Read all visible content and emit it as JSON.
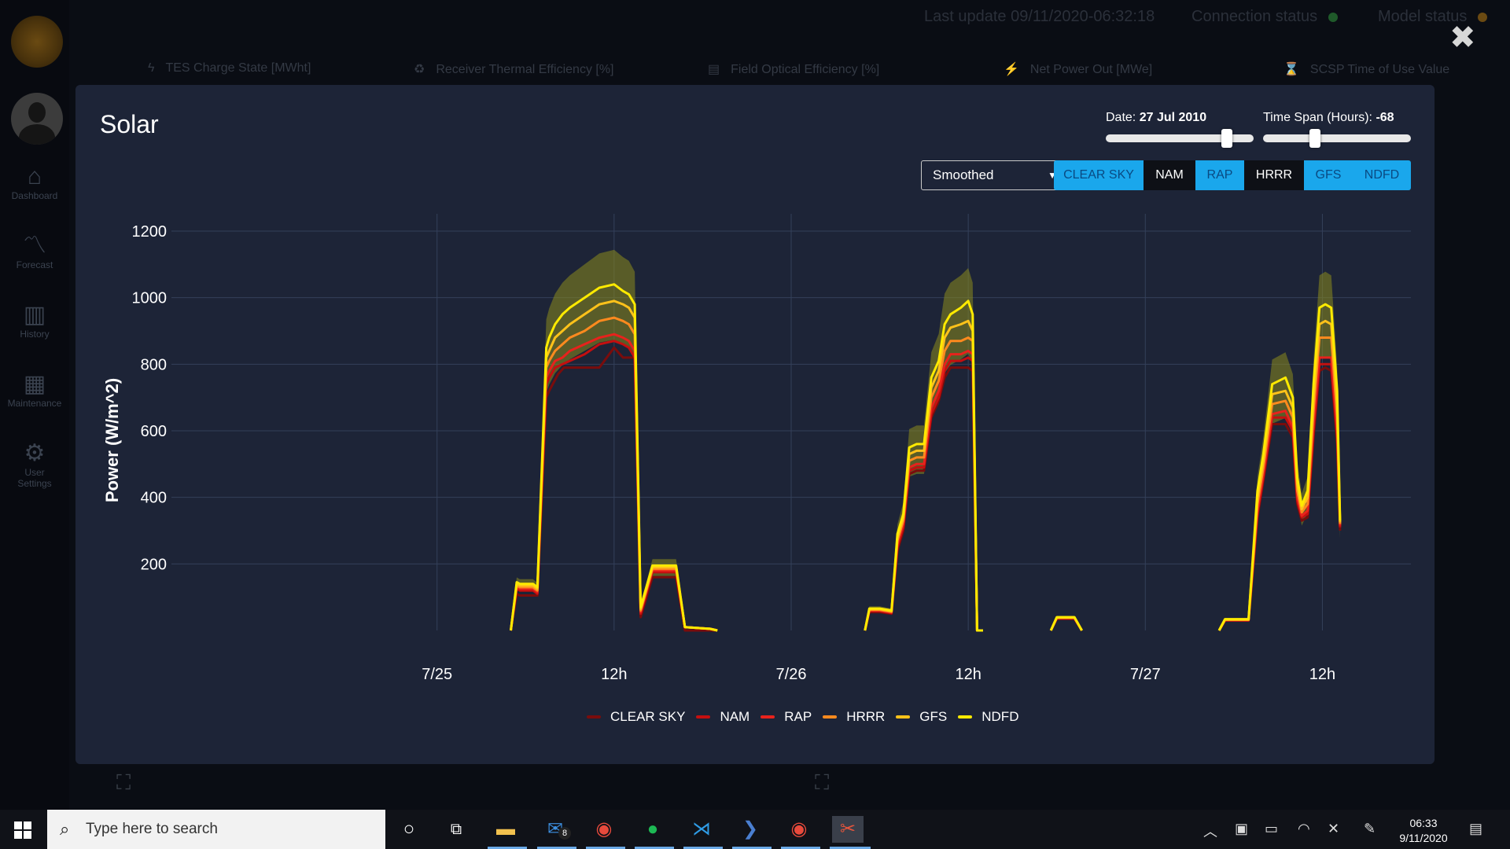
{
  "background_app": {
    "last_update": "Last update 09/11/2020-06:32:18",
    "connection_status": "Connection status",
    "model_status": "Model status",
    "status_colors": {
      "connection": "#1f5a2a",
      "model": "#6b4a12"
    },
    "sidebar": [
      {
        "label": "Dashboard",
        "icon": "home-icon"
      },
      {
        "label": "Forecast",
        "icon": "line-chart-icon"
      },
      {
        "label": "History",
        "icon": "bar-chart-icon"
      },
      {
        "label": "Maintenance",
        "icon": "grid-icon"
      },
      {
        "label": "User Settings",
        "icon": "gears-icon"
      }
    ],
    "tiles": [
      {
        "label": "TES Charge State [MWht]",
        "icon": "bolt-icon"
      },
      {
        "label": "Receiver Thermal Efficiency [%]",
        "icon": "recycle-icon"
      },
      {
        "label": "Field Optical Efficiency [%]",
        "icon": "screen-icon"
      },
      {
        "label": "Net Power Out [MWe]",
        "icon": "plug-icon"
      },
      {
        "label": "SCSP Time of Use Value",
        "icon": "hourglass-icon"
      }
    ]
  },
  "modal": {
    "title": "Solar",
    "date_slider": {
      "label": "Date:",
      "value": "27 Jul 2010",
      "position": 0.82
    },
    "span_slider": {
      "label": "Time Span (Hours):",
      "value": "-68",
      "position": 0.35
    },
    "dropdown": {
      "selected": "Smoothed"
    },
    "model_buttons": [
      {
        "label": "CLEAR SKY",
        "active": true
      },
      {
        "label": "NAM",
        "active": false
      },
      {
        "label": "RAP",
        "active": true
      },
      {
        "label": "HRRR",
        "active": false
      },
      {
        "label": "GFS",
        "active": true
      },
      {
        "label": "NDFD",
        "active": true
      }
    ],
    "accent_color": "#1aa7ec"
  },
  "chart_data": {
    "type": "line",
    "title": "",
    "xlabel": "",
    "ylabel": "Power (W/m^2)",
    "ylim": [
      0,
      1200
    ],
    "y_ticks": [
      200,
      400,
      600,
      800,
      1000,
      1200
    ],
    "x_range_hours": [
      -18,
      66
    ],
    "x_ticks": [
      {
        "hour": 0,
        "label": "7/25"
      },
      {
        "hour": 12,
        "label": "12h"
      },
      {
        "hour": 24,
        "label": "7/26"
      },
      {
        "hour": 36,
        "label": "12h"
      },
      {
        "hour": 48,
        "label": "7/27"
      },
      {
        "hour": 60,
        "label": "12h"
      }
    ],
    "grid": true,
    "legend_position": "bottom",
    "series": [
      {
        "name": "CLEAR SKY",
        "color": "#7a0c0c",
        "x": [
          5,
          5.4,
          5.6,
          6.5,
          6.8,
          7.4,
          7.6,
          8.2,
          8.6,
          10,
          11,
          12,
          12.6,
          13,
          13.4,
          13.8,
          14.6,
          15.4,
          16,
          16.2,
          16.8,
          17.5,
          18.5,
          19
        ],
        "y": [
          0,
          110,
          105,
          105,
          105,
          700,
          720,
          770,
          790,
          790,
          790,
          850,
          820,
          820,
          820,
          40,
          160,
          160,
          160,
          160,
          0,
          0,
          0,
          0
        ]
      },
      {
        "name": "NAM",
        "color": "#c40f0f",
        "x": [
          5,
          5.4,
          5.6,
          6.5,
          6.8,
          7.4,
          7.6,
          8,
          8.5,
          9,
          10,
          11,
          12,
          12.6,
          13,
          13.4,
          13.8,
          14.6,
          15.4,
          16,
          16.2,
          16.8,
          17.5,
          18.5,
          19
        ],
        "y": [
          0,
          125,
          120,
          120,
          110,
          740,
          760,
          790,
          800,
          810,
          830,
          860,
          870,
          860,
          850,
          820,
          50,
          175,
          175,
          175,
          175,
          10,
          8,
          5,
          0
        ]
      },
      {
        "name": "RAP",
        "color": "#e8221c",
        "x": [
          5,
          5.4,
          5.6,
          6.5,
          6.8,
          7.4,
          7.6,
          8,
          8.5,
          9,
          10,
          11,
          12,
          12.6,
          13,
          13.4,
          13.8,
          14.6,
          15.4,
          16,
          16.2,
          16.8,
          17.5,
          18.5,
          19
        ],
        "y": [
          0,
          130,
          125,
          125,
          115,
          760,
          780,
          810,
          820,
          840,
          860,
          880,
          890,
          880,
          870,
          840,
          55,
          180,
          180,
          180,
          180,
          10,
          8,
          5,
          0
        ]
      },
      {
        "name": "HRRR",
        "color": "#ff8a1e",
        "x": [
          5,
          5.4,
          5.6,
          6.5,
          6.8,
          7.4,
          7.6,
          8,
          8.5,
          9,
          10,
          11,
          12,
          12.6,
          13,
          13.4,
          13.8,
          14.6,
          15.4,
          16,
          16.2,
          16.8,
          17.5,
          18.5,
          19
        ],
        "y": [
          0,
          135,
          130,
          130,
          120,
          790,
          810,
          840,
          860,
          880,
          900,
          930,
          940,
          930,
          920,
          890,
          60,
          185,
          185,
          185,
          185,
          10,
          8,
          5,
          0
        ]
      },
      {
        "name": "GFS",
        "color": "#ffc21a",
        "x": [
          5,
          5.4,
          5.6,
          6.5,
          6.8,
          7.4,
          7.6,
          8,
          8.5,
          9,
          10,
          11,
          12,
          12.6,
          13,
          13.4,
          13.8,
          14.6,
          15.4,
          16,
          16.2,
          16.8,
          17.5,
          18.5,
          19
        ],
        "y": [
          0,
          140,
          135,
          135,
          125,
          820,
          840,
          880,
          900,
          920,
          950,
          980,
          990,
          980,
          970,
          940,
          65,
          190,
          190,
          190,
          190,
          10,
          8,
          5,
          0
        ]
      },
      {
        "name": "NDFD",
        "color": "#ffea00",
        "x": [
          5,
          5.4,
          5.6,
          6.5,
          6.8,
          7.4,
          7.6,
          8,
          8.5,
          9,
          10,
          11,
          12,
          12.6,
          13,
          13.4,
          13.8,
          14.6,
          15.4,
          16,
          16.2,
          16.8,
          17.5,
          18.5,
          19
        ],
        "y": [
          0,
          145,
          140,
          140,
          130,
          850,
          880,
          920,
          950,
          970,
          1000,
          1030,
          1040,
          1020,
          1010,
          980,
          70,
          195,
          195,
          195,
          195,
          10,
          8,
          5,
          0
        ]
      }
    ],
    "day_profiles": [
      {
        "x": [
          29,
          29.3,
          30,
          30.8,
          31.2,
          31.6,
          32,
          32.5,
          33,
          33.5,
          34,
          34.4,
          34.8,
          35.5,
          36,
          36.3,
          36.6,
          36.8,
          37
        ],
        "y": {
          "CLEAR SKY": [
            0,
            55,
            55,
            50,
            240,
            300,
            470,
            480,
            480,
            640,
            690,
            760,
            790,
            790,
            790,
            780,
            0,
            0,
            0
          ],
          "NAM": [
            0,
            58,
            58,
            52,
            250,
            310,
            480,
            490,
            490,
            650,
            700,
            780,
            810,
            810,
            820,
            810,
            0,
            0,
            0
          ],
          "RAP": [
            0,
            60,
            60,
            54,
            260,
            320,
            490,
            500,
            500,
            670,
            720,
            800,
            830,
            830,
            840,
            830,
            0,
            0,
            0
          ],
          "HRRR": [
            0,
            62,
            62,
            56,
            270,
            330,
            510,
            520,
            520,
            700,
            750,
            840,
            870,
            870,
            880,
            870,
            0,
            0,
            0
          ],
          "GFS": [
            0,
            64,
            64,
            58,
            280,
            340,
            530,
            540,
            540,
            730,
            780,
            880,
            910,
            920,
            930,
            900,
            0,
            0,
            0
          ],
          "NDFD": [
            0,
            66,
            66,
            60,
            290,
            350,
            550,
            560,
            560,
            760,
            810,
            920,
            950,
            970,
            990,
            950,
            0,
            0,
            0
          ]
        }
      },
      {
        "x": [
          41.6,
          42,
          43.2,
          43.7
        ],
        "y": {
          "CLEAR SKY": [
            0,
            35,
            35,
            0
          ],
          "NAM": [
            0,
            36,
            36,
            0
          ],
          "RAP": [
            0,
            37,
            37,
            0
          ],
          "HRRR": [
            0,
            38,
            38,
            0
          ],
          "GFS": [
            0,
            39,
            39,
            0
          ],
          "NDFD": [
            0,
            40,
            40,
            0
          ]
        }
      },
      {
        "x": [
          53,
          53.4,
          54.5,
          55,
          55.6,
          56,
          56.6,
          57.5,
          58,
          58.3,
          58.6,
          59,
          59.4,
          59.8,
          60.2,
          60.6,
          61,
          61.2
        ],
        "y": {
          "CLEAR SKY": [
            0,
            30,
            30,
            30,
            340,
            450,
            620,
            620,
            580,
            380,
            330,
            340,
            580,
            780,
            790,
            780,
            560,
            300
          ],
          "NAM": [
            0,
            30,
            30,
            30,
            350,
            460,
            640,
            640,
            600,
            390,
            340,
            350,
            600,
            800,
            800,
            800,
            580,
            310
          ],
          "RAP": [
            0,
            31,
            31,
            31,
            360,
            470,
            650,
            660,
            610,
            400,
            345,
            360,
            620,
            820,
            820,
            820,
            600,
            315
          ],
          "HRRR": [
            0,
            32,
            32,
            32,
            380,
            490,
            680,
            690,
            640,
            420,
            355,
            380,
            660,
            880,
            880,
            880,
            640,
            320
          ],
          "GFS": [
            0,
            33,
            33,
            33,
            400,
            510,
            710,
            720,
            670,
            440,
            365,
            400,
            700,
            920,
            930,
            920,
            680,
            325
          ],
          "NDFD": [
            0,
            34,
            34,
            34,
            420,
            530,
            740,
            760,
            700,
            460,
            375,
            420,
            740,
            970,
            980,
            970,
            720,
            330
          ]
        }
      }
    ]
  },
  "taskbar": {
    "search_placeholder": "Type here to search",
    "mail_badge": "8",
    "time": "06:33",
    "date": "9/11/2020",
    "apps": [
      "cortana-icon",
      "task-view-icon",
      "file-explorer-icon",
      "mail-icon",
      "chrome-icon",
      "spotify-icon",
      "vscode-icon",
      "powershell-icon",
      "chrome-icon",
      "app-icon"
    ]
  }
}
